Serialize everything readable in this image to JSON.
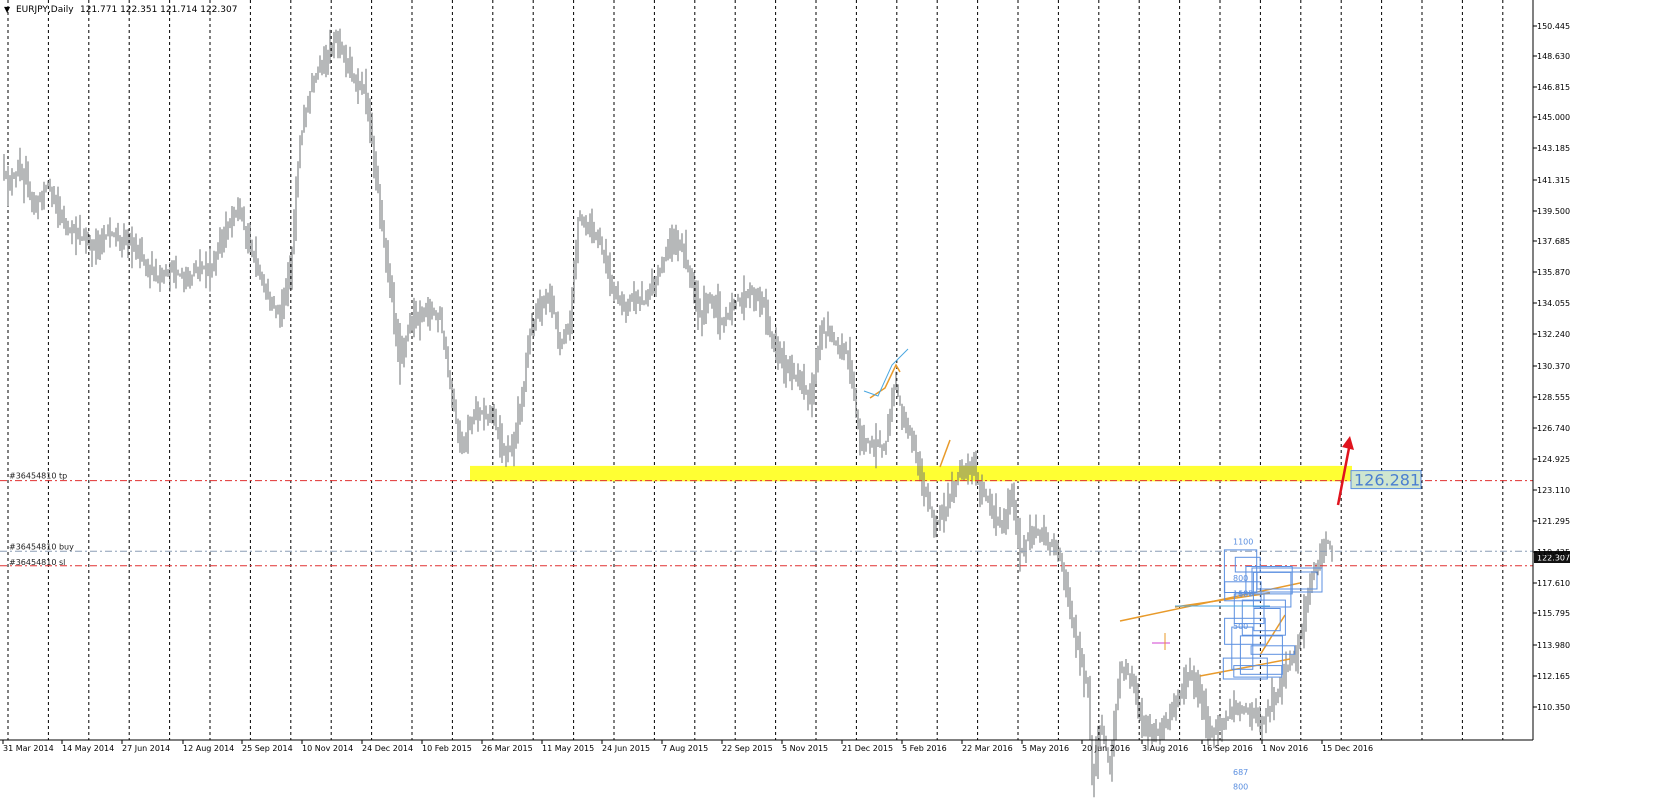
{
  "header": {
    "symbol": "EURJPY,Daily",
    "ohlc": "121.771 122.351 121.714 122.307",
    "menu_glyph": "▼"
  },
  "colors": {
    "background": "#ffffff",
    "bars": "#6e7073",
    "grid": "#000000",
    "zone": "#ffff33",
    "level_red": "#e03030",
    "level_buy": "#8c9db5",
    "bid_box": "#111111",
    "fib_blue": "#5b8fe0",
    "trend_orange": "#e89a2a",
    "arrow_red": "#e0141e"
  },
  "chart_data": {
    "type": "ohlc",
    "y_axis": {
      "min": 109.5,
      "max": 151.3,
      "ticks": [
        "150.445",
        "148.630",
        "146.815",
        "145.000",
        "143.185",
        "141.315",
        "139.500",
        "137.685",
        "135.870",
        "134.055",
        "132.240",
        "130.370",
        "128.555",
        "126.740",
        "124.925",
        "123.110",
        "121.295",
        "119.425",
        "117.610",
        "115.795",
        "113.980",
        "112.165",
        "110.350"
      ],
      "current": "122.307"
    },
    "x_axis": {
      "labels": [
        "31 Mar 2014",
        "14 May 2014",
        "27 Jun 2014",
        "12 Aug 2014",
        "25 Sep 2014",
        "10 Nov 2014",
        "24 Dec 2014",
        "10 Feb 2015",
        "26 Mar 2015",
        "11 May 2015",
        "24 Jun 2015",
        "7 Aug 2015",
        "22 Sep 2015",
        "5 Nov 2015",
        "21 Dec 2015",
        "5 Feb 2016",
        "22 Mar 2016",
        "5 May 2016",
        "20 Jun 2016",
        "3 Aug 2016",
        "16 Sep 2016",
        "1 Nov 2016",
        "15 Dec 2016"
      ]
    },
    "price_path": [
      [
        0,
        143.3
      ],
      [
        3,
        142.6
      ],
      [
        8,
        141.6
      ],
      [
        12,
        142.0
      ],
      [
        18,
        142.4
      ],
      [
        25,
        141.9
      ],
      [
        35,
        140.5
      ],
      [
        48,
        141.8
      ],
      [
        55,
        140.8
      ],
      [
        65,
        139.6
      ],
      [
        78,
        139.0
      ],
      [
        92,
        138.5
      ],
      [
        110,
        139.2
      ],
      [
        125,
        138.8
      ],
      [
        140,
        138.0
      ],
      [
        158,
        136.8
      ],
      [
        172,
        137.3
      ],
      [
        186,
        136.6
      ],
      [
        200,
        137.5
      ],
      [
        212,
        137.2
      ],
      [
        225,
        139.3
      ],
      [
        238,
        140.5
      ],
      [
        248,
        138.8
      ],
      [
        258,
        137.2
      ],
      [
        270,
        135.6
      ],
      [
        280,
        135.0
      ],
      [
        290,
        137.0
      ],
      [
        300,
        144.0
      ],
      [
        310,
        146.5
      ],
      [
        318,
        147.8
      ],
      [
        324,
        148.2
      ],
      [
        331,
        148.8
      ],
      [
        338,
        149.5
      ],
      [
        345,
        148.0
      ],
      [
        355,
        147.0
      ],
      [
        365,
        146.5
      ],
      [
        372,
        144.0
      ],
      [
        380,
        140.5
      ],
      [
        390,
        136.5
      ],
      [
        400,
        132.5
      ],
      [
        408,
        134.2
      ],
      [
        418,
        134.8
      ],
      [
        428,
        135.3
      ],
      [
        440,
        134.8
      ],
      [
        452,
        130.5
      ],
      [
        462,
        127.8
      ],
      [
        470,
        129.3
      ],
      [
        478,
        130.0
      ],
      [
        488,
        129.6
      ],
      [
        497,
        129.0
      ],
      [
        505,
        127.6
      ],
      [
        512,
        128.0
      ],
      [
        522,
        130.6
      ],
      [
        530,
        134.0
      ],
      [
        540,
        135.2
      ],
      [
        550,
        136.2
      ],
      [
        560,
        133.2
      ],
      [
        570,
        134.5
      ],
      [
        578,
        140.0
      ],
      [
        590,
        139.5
      ],
      [
        600,
        138.7
      ],
      [
        612,
        136.2
      ],
      [
        622,
        135.4
      ],
      [
        632,
        135.8
      ],
      [
        645,
        135.6
      ],
      [
        656,
        136.8
      ],
      [
        668,
        138.4
      ],
      [
        680,
        138.7
      ],
      [
        690,
        137.0
      ],
      [
        700,
        135.0
      ],
      [
        712,
        135.8
      ],
      [
        722,
        134.5
      ],
      [
        736,
        135.6
      ],
      [
        752,
        136.0
      ],
      [
        763,
        135.5
      ],
      [
        774,
        133.2
      ],
      [
        788,
        132.0
      ],
      [
        800,
        131.5
      ],
      [
        810,
        130.3
      ],
      [
        822,
        134.1
      ],
      [
        835,
        133.5
      ],
      [
        848,
        132.8
      ],
      [
        860,
        128.5
      ],
      [
        872,
        128.2
      ],
      [
        885,
        128.0
      ],
      [
        895,
        131.4
      ],
      [
        903,
        129.5
      ],
      [
        912,
        128.6
      ],
      [
        922,
        126.2
      ],
      [
        935,
        124.0
      ],
      [
        948,
        125.0
      ],
      [
        958,
        126.6
      ],
      [
        972,
        127.0
      ],
      [
        982,
        125.7
      ],
      [
        992,
        124.8
      ],
      [
        1002,
        123.6
      ],
      [
        1012,
        125.7
      ],
      [
        1020,
        122.5
      ],
      [
        1032,
        123.8
      ],
      [
        1045,
        123.2
      ],
      [
        1058,
        122.7
      ],
      [
        1070,
        119.5
      ],
      [
        1080,
        117.0
      ],
      [
        1088,
        115.5
      ],
      [
        1092,
        110.5
      ],
      [
        1100,
        113.5
      ],
      [
        1110,
        111.5
      ],
      [
        1120,
        116.5
      ],
      [
        1132,
        116.0
      ],
      [
        1145,
        113.2
      ],
      [
        1158,
        113.0
      ],
      [
        1170,
        114.0
      ],
      [
        1180,
        115.2
      ],
      [
        1190,
        116.3
      ],
      [
        1200,
        115.0
      ],
      [
        1212,
        113.0
      ],
      [
        1222,
        113.5
      ],
      [
        1234,
        114.5
      ],
      [
        1248,
        114.2
      ],
      [
        1262,
        113.8
      ],
      [
        1275,
        115.0
      ],
      [
        1288,
        116.7
      ],
      [
        1296,
        117.0
      ],
      [
        1305,
        119.5
      ],
      [
        1312,
        121.5
      ],
      [
        1320,
        122.3
      ],
      [
        1327,
        123.3
      ],
      [
        1333,
        122.3
      ]
    ],
    "levels": [
      {
        "name": "tp",
        "label": "#36454810 tp",
        "price": 126.281,
        "style": "dash-dot"
      },
      {
        "name": "buy",
        "label": "#36454810 buy",
        "price": 122.6,
        "style": "dash-dot"
      },
      {
        "name": "sl",
        "label": "#36454810 sl",
        "price": 121.85,
        "style": "dash-dot"
      }
    ],
    "zone": {
      "price_low": 126.25,
      "price_high": 127.05,
      "from_index": 470,
      "to_index": 1352
    },
    "target_label": "126.281",
    "fib_labels": [
      {
        "text": "1100",
        "price": 122.95
      },
      {
        "text": "800",
        "price": 121.05
      },
      {
        "text": "1100",
        "price": 120.25
      },
      {
        "text": "687",
        "price": 120.25
      },
      {
        "text": "500",
        "price": 118.55
      },
      {
        "text": "687",
        "price": 110.95
      },
      {
        "text": "800",
        "price": 110.2
      },
      {
        "text": "1100",
        "price": 108.6
      }
    ]
  }
}
